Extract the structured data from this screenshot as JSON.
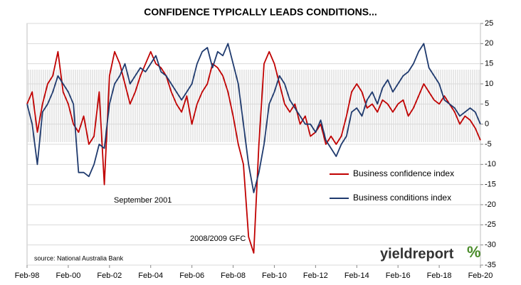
{
  "chart_data": {
    "type": "line",
    "title": "CONFIDENCE TYPICALLY LEADS CONDITIONS...",
    "categories": [
      "Feb-98",
      null,
      null,
      null,
      null,
      null,
      null,
      null,
      "Feb-00",
      null,
      null,
      null,
      null,
      null,
      null,
      null,
      "Feb-02",
      null,
      null,
      null,
      null,
      null,
      null,
      null,
      "Feb-04",
      null,
      null,
      null,
      null,
      null,
      null,
      null,
      "Feb-06",
      null,
      null,
      null,
      null,
      null,
      null,
      null,
      "Feb-08",
      null,
      null,
      null,
      null,
      null,
      null,
      null,
      "Feb-10",
      null,
      null,
      null,
      null,
      null,
      null,
      null,
      "Feb-12",
      null,
      null,
      null,
      null,
      null,
      null,
      null,
      "Feb-14",
      null,
      null,
      null,
      null,
      null,
      null,
      null,
      "Feb-16",
      null,
      null,
      null,
      null,
      null,
      null,
      null,
      "Feb-18",
      null,
      null,
      null,
      null,
      null,
      null,
      null,
      "Feb-20"
    ],
    "series": [
      {
        "name": "Business confidence index",
        "color": "#c00000",
        "values": [
          5,
          8,
          -2,
          5,
          10,
          12,
          18,
          8,
          5,
          0,
          -2,
          2,
          -5,
          -3,
          8,
          -15,
          12,
          18,
          15,
          10,
          5,
          8,
          12,
          15,
          18,
          15,
          14,
          12,
          8,
          5,
          3,
          7,
          0,
          5,
          8,
          10,
          15,
          14,
          12,
          8,
          2,
          -5,
          -10,
          -28,
          -32,
          -5,
          15,
          18,
          15,
          10,
          5,
          3,
          5,
          0,
          2,
          -3,
          -2,
          0,
          -5,
          -3,
          -5,
          -3,
          2,
          8,
          10,
          8,
          4,
          5,
          3,
          6,
          5,
          3,
          5,
          6,
          2,
          4,
          7,
          10,
          8,
          6,
          5,
          7,
          5,
          3,
          0,
          2,
          1,
          -1,
          -4
        ]
      },
      {
        "name": "Business conditions index",
        "color": "#1f3a6e",
        "values": [
          5,
          0,
          -10,
          3,
          5,
          8,
          12,
          10,
          8,
          5,
          -12,
          -12,
          -13,
          -10,
          -5,
          -6,
          5,
          10,
          12,
          15,
          10,
          12,
          14,
          13,
          15,
          17,
          13,
          12,
          10,
          8,
          6,
          8,
          10,
          15,
          18,
          19,
          14,
          18,
          17,
          20,
          15,
          10,
          0,
          -10,
          -17,
          -12,
          -5,
          5,
          8,
          12,
          10,
          6,
          4,
          2,
          0,
          0,
          -2,
          1,
          -4,
          -6,
          -8,
          -5,
          -3,
          3,
          4,
          2,
          6,
          8,
          5,
          9,
          11,
          8,
          10,
          12,
          13,
          15,
          18,
          20,
          14,
          12,
          10,
          6,
          5,
          4,
          2,
          3,
          4,
          3,
          0
        ]
      }
    ],
    "ylim": [
      -35,
      25
    ],
    "yticks": [
      25,
      20,
      15,
      10,
      5,
      0,
      -5,
      -10,
      -15,
      -20,
      -25,
      -30,
      -35
    ],
    "grid": true,
    "annotations": [
      "September 2001",
      "2008/2009 GFC",
      "source: National Australia Bank"
    ],
    "logo": [
      "yieldreport",
      "%"
    ]
  }
}
